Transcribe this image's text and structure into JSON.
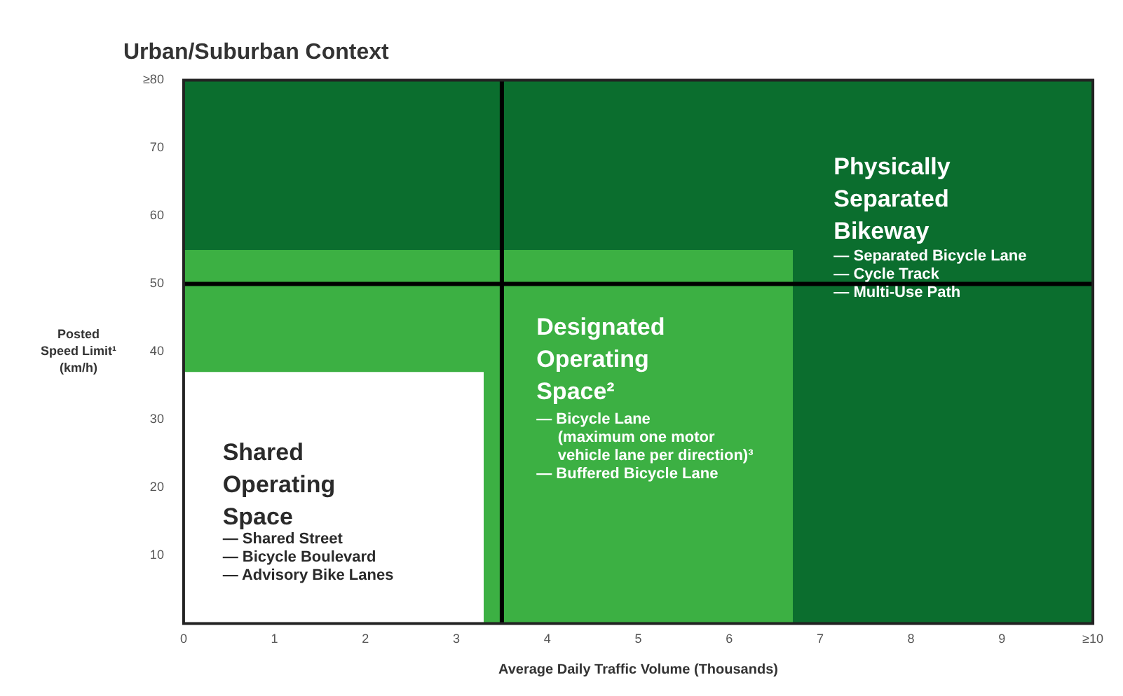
{
  "chart_data": {
    "type": "area",
    "title": "Urban/Suburban Context",
    "xlabel": "Average Daily Traffic Volume (Thousands)",
    "ylabel": "Posted\nSpeed Limit¹\n(km/h)",
    "series": [
      {
        "color": "#ffffff",
        "values": [
          37,
          37,
          0,
          0,
          0,
          0
        ]
      },
      {
        "color": "#3cb043",
        "values": [
          18,
          18,
          55,
          55,
          0,
          0
        ]
      },
      {
        "color": "#0b6e2e",
        "values": [
          25,
          25,
          25,
          25,
          80,
          80
        ]
      }
    ],
    "x": [
      0,
      3.3,
      3.3,
      6.7,
      6.7,
      10
    ],
    "stacked": true,
    "xlim": [
      0,
      10
    ],
    "xticks": [
      0,
      1,
      2,
      3,
      4,
      5,
      6,
      7,
      8,
      9,
      {
        "value": 10,
        "label": "≥10"
      }
    ],
    "ylim": [
      0,
      80
    ],
    "yticks": [
      10,
      20,
      30,
      40,
      50,
      60,
      70,
      {
        "value": 80,
        "label": "≥80"
      }
    ],
    "ref_lines": [
      {
        "axis": "x",
        "value": 3.5,
        "color": "#000000"
      },
      {
        "axis": "y",
        "value": 50,
        "color": "#000000"
      }
    ],
    "annotations": [
      "Shared\nOperating\nSpace",
      "— Shared Street\n— Bicycle Boulevard\n— Advisory Bike Lanes",
      "Designated\nOperating\nSpace²",
      "— Bicycle Lane\n     (maximum one motor\n     vehicle lane per direction)³\n— Buffered Bicycle Lane",
      "Physically\nSeparated\nBikeway",
      "— Separated Bicycle Lane\n— Cycle Track\n— Multi-Use Path"
    ],
    "grid": false,
    "legend": false
  }
}
